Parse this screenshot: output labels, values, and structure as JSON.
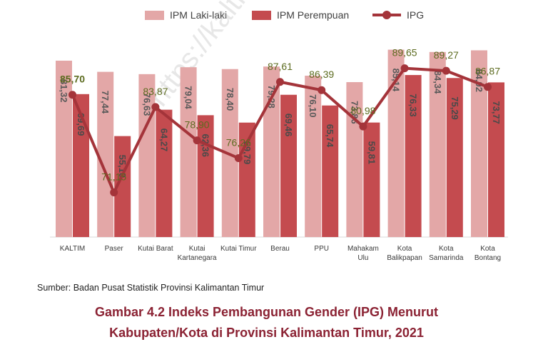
{
  "legend": {
    "male": "IPM Laki-laki",
    "female": "IPM Perempuan",
    "ipg": "IPG"
  },
  "colors": {
    "male": "#e3a7a7",
    "female": "#c44b4f",
    "ipg": "#a4343a",
    "ipg_label": "#5c6b1f",
    "value_label": "#5a5a5a"
  },
  "chart_data": {
    "type": "bar",
    "categories": [
      [
        "KALTIM"
      ],
      [
        "Paser"
      ],
      [
        "Kutai Barat"
      ],
      [
        "Kutai",
        "Kartanegara"
      ],
      [
        "Kutai Timur"
      ],
      [
        "Berau"
      ],
      [
        "PPU"
      ],
      [
        "Mahakam",
        "Ulu"
      ],
      [
        "Kota",
        "Balikpapan"
      ],
      [
        "Kota",
        "Samarinda"
      ],
      [
        "Kota",
        "Bontang"
      ]
    ],
    "series": [
      {
        "name": "IPM Laki-laki",
        "type": "bar",
        "values": [
          81.32,
          77.44,
          76.63,
          79.04,
          78.4,
          79.28,
          76.1,
          73.86,
          85.14,
          84.34,
          84.92
        ],
        "labels": [
          "81,32",
          "77,44",
          "76,63",
          "79,04",
          "78,40",
          "79,28",
          "76,10",
          "73,86",
          "85,14",
          "84,34",
          "84,92"
        ]
      },
      {
        "name": "IPM Perempuan",
        "type": "bar",
        "values": [
          69.69,
          55.1,
          64.27,
          62.36,
          59.79,
          69.46,
          65.74,
          59.81,
          76.33,
          75.29,
          73.77
        ],
        "labels": [
          "69,69",
          "55,10",
          "64,27",
          "62,36",
          "59,79",
          "69,46",
          "65,74",
          "59,81",
          "76,33",
          "75,29",
          "73,77"
        ]
      },
      {
        "name": "IPG",
        "type": "line",
        "values": [
          85.7,
          71.15,
          83.87,
          78.9,
          76.26,
          87.61,
          86.39,
          80.98,
          89.65,
          89.27,
          86.87
        ],
        "labels": [
          "85,70",
          "71,15",
          "83,87",
          "78,90",
          "76,26",
          "87,61",
          "86,39",
          "80,98",
          "89,65",
          "89,27",
          "86,87"
        ]
      }
    ]
  },
  "watermark": "https://kaltim...",
  "source": "Sumber: Badan Pusat Statistik Provinsi Kalimantan Timur",
  "caption": {
    "line1": "Gambar 4.2 Indeks Pembangunan Gender (IPG) Menurut",
    "line2": "Kabupaten/Kota di Provinsi Kalimantan Timur, 2021"
  }
}
